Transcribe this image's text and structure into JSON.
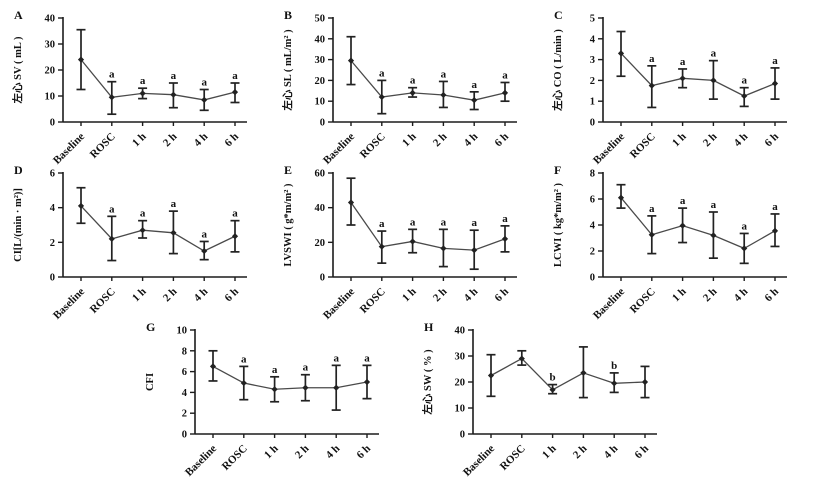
{
  "figure": {
    "background": "#ffffff",
    "axis_color": "#1c1c1c",
    "line_color": "#4a4a4a",
    "marker_color": "#222222",
    "text_color": "#111111"
  },
  "chart_data": [
    {
      "panel": "A",
      "type": "line",
      "title": "",
      "xlabel": "",
      "ylabel": "左心 SV ( mL )",
      "ylim": [
        0,
        40
      ],
      "yticks": [
        0,
        10,
        20,
        30,
        40
      ],
      "categories": [
        "Baseline",
        "ROSC",
        "1 h",
        "2 h",
        "4 h",
        "6 h"
      ],
      "means": [
        24,
        9.5,
        11,
        10.5,
        8.5,
        11.5
      ],
      "lower": [
        12.5,
        3,
        9,
        5.5,
        4.5,
        7.5
      ],
      "upper": [
        35.5,
        15.5,
        13,
        15,
        12.5,
        15
      ],
      "annotations": [
        "",
        "a",
        "a",
        "a",
        "a",
        "a"
      ],
      "grid": false,
      "legend": "none"
    },
    {
      "panel": "B",
      "type": "line",
      "title": "",
      "xlabel": "",
      "ylabel": "左心 SL ( mL/m² )",
      "ylim": [
        0,
        50
      ],
      "yticks": [
        0,
        10,
        20,
        30,
        40,
        50
      ],
      "categories": [
        "Baseline",
        "ROSC",
        "1 h",
        "2 h",
        "4 h",
        "6 h"
      ],
      "means": [
        29.5,
        12,
        14,
        13,
        10.5,
        14
      ],
      "lower": [
        18,
        4,
        12,
        7,
        6,
        10
      ],
      "upper": [
        41,
        20,
        16.5,
        19.5,
        14.5,
        19
      ],
      "annotations": [
        "",
        "a",
        "a",
        "a",
        "a",
        "a"
      ],
      "grid": false,
      "legend": "none"
    },
    {
      "panel": "C",
      "type": "line",
      "title": "",
      "xlabel": "",
      "ylabel": "左心 CO ( L/min )",
      "ylim": [
        0,
        5
      ],
      "yticks": [
        0,
        1,
        2,
        3,
        4,
        5
      ],
      "categories": [
        "Baseline",
        "ROSC",
        "1 h",
        "2 h",
        "4 h",
        "6 h"
      ],
      "means": [
        3.3,
        1.75,
        2.1,
        2.0,
        1.25,
        1.85
      ],
      "lower": [
        2.2,
        0.7,
        1.65,
        1.1,
        0.75,
        1.1
      ],
      "upper": [
        4.35,
        2.7,
        2.55,
        2.95,
        1.65,
        2.6
      ],
      "annotations": [
        "",
        "a",
        "a",
        "a",
        "a",
        "a"
      ],
      "grid": false,
      "legend": "none"
    },
    {
      "panel": "D",
      "type": "line",
      "title": "",
      "xlabel": "",
      "ylabel": "CI[L/(min · m²)]",
      "ylim": [
        0,
        6
      ],
      "yticks": [
        0,
        2,
        4,
        6
      ],
      "categories": [
        "Baseline",
        "ROSC",
        "1 h",
        "2 h",
        "4 h",
        "6 h"
      ],
      "means": [
        4.1,
        2.2,
        2.7,
        2.55,
        1.5,
        2.35
      ],
      "lower": [
        3.1,
        0.95,
        2.25,
        1.35,
        1.0,
        1.45
      ],
      "upper": [
        5.15,
        3.5,
        3.25,
        3.8,
        2.05,
        3.25
      ],
      "annotations": [
        "",
        "a",
        "a",
        "a",
        "a",
        "a"
      ],
      "grid": false,
      "legend": "none"
    },
    {
      "panel": "E",
      "type": "line",
      "title": "",
      "xlabel": "",
      "ylabel": "LVSWI ( g*m/m² )",
      "ylim": [
        0,
        60
      ],
      "yticks": [
        0,
        20,
        40,
        60
      ],
      "categories": [
        "Baseline",
        "ROSC",
        "1 h",
        "2 h",
        "4 h",
        "6 h"
      ],
      "means": [
        43,
        17.5,
        20.5,
        16.5,
        15.5,
        22
      ],
      "lower": [
        30,
        8,
        14,
        6,
        4.5,
        14.5
      ],
      "upper": [
        57,
        26.5,
        27.5,
        27.5,
        27,
        29.5
      ],
      "annotations": [
        "",
        "a",
        "a",
        "a",
        "a",
        "a"
      ],
      "grid": false,
      "legend": "none"
    },
    {
      "panel": "F",
      "type": "line",
      "title": "",
      "xlabel": "",
      "ylabel": "LCWI ( kg*m/m² )",
      "ylim": [
        0,
        8
      ],
      "yticks": [
        0,
        2,
        4,
        6,
        8
      ],
      "categories": [
        "Baseline",
        "ROSC",
        "1 h",
        "2 h",
        "4 h",
        "6 h"
      ],
      "means": [
        6.1,
        3.25,
        3.95,
        3.2,
        2.2,
        3.55
      ],
      "lower": [
        5.3,
        1.8,
        2.65,
        1.45,
        1.05,
        2.35
      ],
      "upper": [
        7.1,
        4.7,
        5.3,
        5.0,
        3.35,
        4.85
      ],
      "annotations": [
        "",
        "a",
        "a",
        "a",
        "a",
        "a"
      ],
      "grid": false,
      "legend": "none"
    },
    {
      "panel": "G",
      "type": "line",
      "title": "",
      "xlabel": "",
      "ylabel": "CFI",
      "ylim": [
        0,
        10
      ],
      "yticks": [
        0,
        2,
        4,
        6,
        8,
        10
      ],
      "categories": [
        "Baseline",
        "ROSC",
        "1 h",
        "2 h",
        "4 h",
        "6 h"
      ],
      "means": [
        6.5,
        4.9,
        4.3,
        4.45,
        4.45,
        5.0
      ],
      "lower": [
        5.1,
        3.3,
        3.1,
        3.2,
        2.3,
        3.4
      ],
      "upper": [
        8.0,
        6.5,
        5.5,
        5.7,
        6.6,
        6.6
      ],
      "annotations": [
        "",
        "a",
        "a",
        "a",
        "a",
        "a"
      ],
      "grid": false,
      "legend": "none"
    },
    {
      "panel": "H",
      "type": "line",
      "title": "",
      "xlabel": "",
      "ylabel": "左心 SW ( % )",
      "ylim": [
        0,
        40
      ],
      "yticks": [
        0,
        10,
        20,
        30,
        40
      ],
      "categories": [
        "Baseline",
        "ROSC",
        "1 h",
        "2 h",
        "4 h",
        "6 h"
      ],
      "means": [
        22.5,
        29,
        17,
        23.5,
        19.5,
        20
      ],
      "lower": [
        14.5,
        26.5,
        15.5,
        14,
        16,
        14
      ],
      "upper": [
        30.5,
        32,
        19,
        33.5,
        23.5,
        26
      ],
      "annotations": [
        "",
        "",
        "b",
        "",
        "b",
        ""
      ],
      "grid": false,
      "legend": "none"
    }
  ]
}
